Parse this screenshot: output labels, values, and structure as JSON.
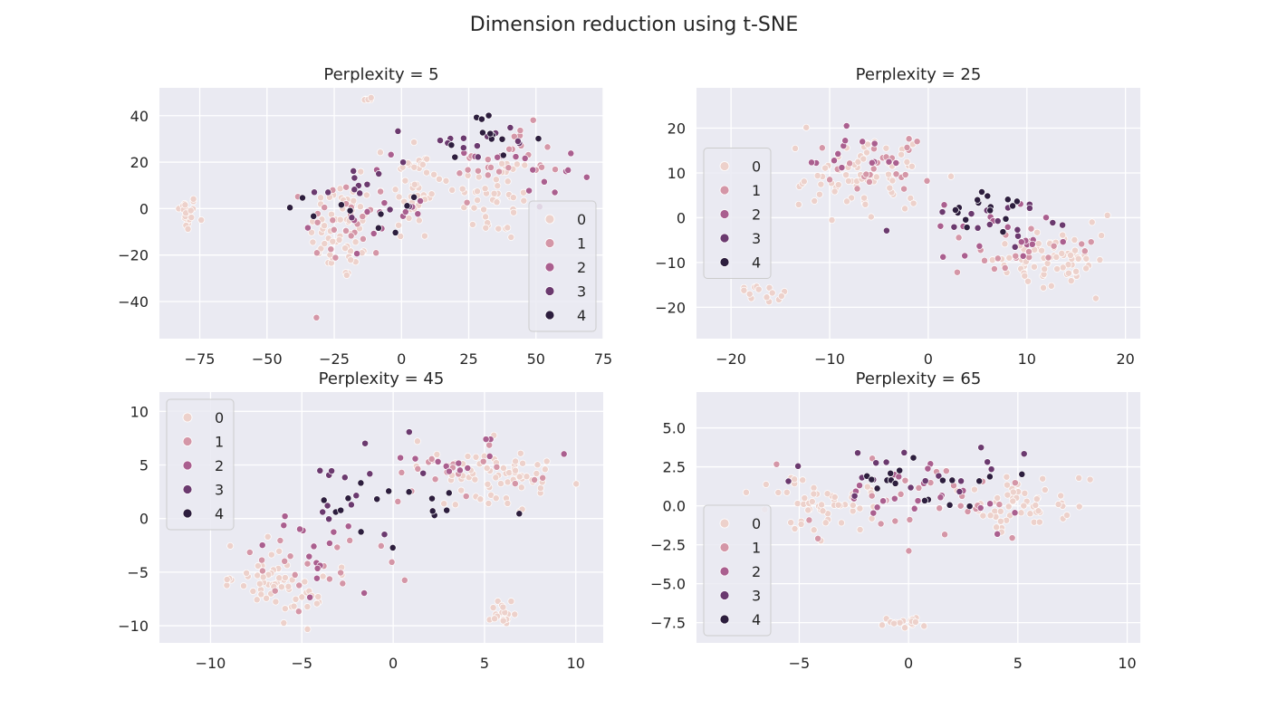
{
  "figure": {
    "suptitle": "Dimension reduction using t-SNE"
  },
  "hue_colors": {
    "0": "#edd1cb",
    "1": "#d496a7",
    "2": "#aa5f8f",
    "3": "#6b3a6f",
    "4": "#2d1e3e"
  },
  "legend_labels": [
    "0",
    "1",
    "2",
    "3",
    "4"
  ],
  "chart_data": [
    {
      "type": "scatter",
      "title": "Perplexity = 5",
      "xlabel": "",
      "ylabel": "",
      "xlim": [
        -90,
        75
      ],
      "ylim": [
        -56,
        52
      ],
      "xticks": [
        -75,
        -50,
        -25,
        0,
        25,
        50,
        75
      ],
      "yticks": [
        -40,
        -20,
        0,
        20,
        40
      ],
      "legend": "lower-right",
      "grid": true,
      "clusters": [
        {
          "hue": 0,
          "center": [
            -80,
            -2
          ],
          "spread": [
            4,
            8
          ],
          "n": 22
        },
        {
          "hue": 0,
          "center": [
            -22,
            -10
          ],
          "spread": [
            12,
            22
          ],
          "n": 60
        },
        {
          "hue": 0,
          "center": [
            5,
            10
          ],
          "spread": [
            10,
            25
          ],
          "n": 45
        },
        {
          "hue": 0,
          "center": [
            35,
            5
          ],
          "spread": [
            15,
            20
          ],
          "n": 45
        },
        {
          "hue": 0,
          "center": [
            -12,
            47
          ],
          "spread": [
            3,
            1
          ],
          "n": 5
        },
        {
          "hue": 1,
          "center": [
            -20,
            -5
          ],
          "spread": [
            15,
            20
          ],
          "n": 25
        },
        {
          "hue": 1,
          "center": [
            40,
            20
          ],
          "spread": [
            20,
            15
          ],
          "n": 25
        },
        {
          "hue": 2,
          "center": [
            -10,
            0
          ],
          "spread": [
            20,
            20
          ],
          "n": 15
        },
        {
          "hue": 2,
          "center": [
            45,
            15
          ],
          "spread": [
            20,
            15
          ],
          "n": 15
        },
        {
          "hue": 3,
          "center": [
            -15,
            10
          ],
          "spread": [
            20,
            20
          ],
          "n": 14
        },
        {
          "hue": 3,
          "center": [
            35,
            30
          ],
          "spread": [
            20,
            10
          ],
          "n": 12
        },
        {
          "hue": 4,
          "center": [
            -10,
            0
          ],
          "spread": [
            25,
            20
          ],
          "n": 10
        },
        {
          "hue": 4,
          "center": [
            30,
            30
          ],
          "spread": [
            20,
            10
          ],
          "n": 12
        }
      ]
    },
    {
      "type": "scatter",
      "title": "Perplexity = 25",
      "xlabel": "",
      "ylabel": "",
      "xlim": [
        -23.5,
        21.5
      ],
      "ylim": [
        -27,
        29
      ],
      "xticks": [
        -20,
        -10,
        0,
        10,
        20
      ],
      "yticks": [
        -20,
        -10,
        0,
        10,
        20
      ],
      "legend": "center-left",
      "grid": true,
      "clusters": [
        {
          "hue": 0,
          "center": [
            -7,
            10
          ],
          "spread": [
            7,
            9
          ],
          "n": 75
        },
        {
          "hue": 0,
          "center": [
            12,
            -10
          ],
          "spread": [
            6,
            7
          ],
          "n": 70
        },
        {
          "hue": 0,
          "center": [
            -17,
            -17
          ],
          "spread": [
            3,
            2
          ],
          "n": 14
        },
        {
          "hue": 1,
          "center": [
            -5,
            12
          ],
          "spread": [
            8,
            8
          ],
          "n": 25
        },
        {
          "hue": 1,
          "center": [
            10,
            -8
          ],
          "spread": [
            6,
            7
          ],
          "n": 20
        },
        {
          "hue": 2,
          "center": [
            -8,
            15
          ],
          "spread": [
            6,
            6
          ],
          "n": 14
        },
        {
          "hue": 2,
          "center": [
            9,
            -5
          ],
          "spread": [
            7,
            6
          ],
          "n": 18
        },
        {
          "hue": 3,
          "center": [
            7,
            0
          ],
          "spread": [
            7,
            8
          ],
          "n": 16
        },
        {
          "hue": 4,
          "center": [
            6,
            2
          ],
          "spread": [
            6,
            6
          ],
          "n": 16
        }
      ]
    },
    {
      "type": "scatter",
      "title": "Perplexity = 45",
      "xlabel": "",
      "ylabel": "",
      "xlim": [
        -12.8,
        11.5
      ],
      "ylim": [
        -11.6,
        11.8
      ],
      "xticks": [
        -10,
        -5,
        0,
        5,
        10
      ],
      "yticks": [
        -10,
        -5,
        0,
        5,
        10
      ],
      "legend": "upper-left",
      "grid": true,
      "clusters": [
        {
          "hue": 0,
          "center": [
            5,
            4
          ],
          "spread": [
            3.5,
            3
          ],
          "n": 70
        },
        {
          "hue": 0,
          "center": [
            -6,
            -6
          ],
          "spread": [
            3,
            3
          ],
          "n": 60
        },
        {
          "hue": 0,
          "center": [
            6,
            -9
          ],
          "spread": [
            0.8,
            1
          ],
          "n": 18
        },
        {
          "hue": 1,
          "center": [
            -4,
            -5
          ],
          "spread": [
            4,
            4
          ],
          "n": 20
        },
        {
          "hue": 1,
          "center": [
            4,
            4
          ],
          "spread": [
            4,
            3
          ],
          "n": 20
        },
        {
          "hue": 2,
          "center": [
            -5,
            -3
          ],
          "spread": [
            5,
            5
          ],
          "n": 16
        },
        {
          "hue": 2,
          "center": [
            3,
            5
          ],
          "spread": [
            4,
            3
          ],
          "n": 12
        },
        {
          "hue": 3,
          "center": [
            -2,
            3
          ],
          "spread": [
            5,
            5
          ],
          "n": 14
        },
        {
          "hue": 4,
          "center": [
            0,
            2
          ],
          "spread": [
            5,
            5
          ],
          "n": 16
        }
      ]
    },
    {
      "type": "scatter",
      "title": "Perplexity = 65",
      "xlabel": "",
      "ylabel": "",
      "xlim": [
        -9.7,
        10.6
      ],
      "ylim": [
        -8.8,
        7.3
      ],
      "xticks": [
        -5,
        0,
        5,
        10
      ],
      "yticks": [
        -7.5,
        -5.0,
        -2.5,
        0.0,
        2.5,
        5.0
      ],
      "legend": "lower-left",
      "grid": true,
      "clusters": [
        {
          "hue": 0,
          "center": [
            -4,
            0
          ],
          "spread": [
            2.5,
            2
          ],
          "n": 55
        },
        {
          "hue": 0,
          "center": [
            5,
            0
          ],
          "spread": [
            2.5,
            2.2
          ],
          "n": 55
        },
        {
          "hue": 0,
          "center": [
            0,
            -7.4
          ],
          "spread": [
            1,
            0.4
          ],
          "n": 16
        },
        {
          "hue": 1,
          "center": [
            0,
            0
          ],
          "spread": [
            5,
            2.5
          ],
          "n": 30
        },
        {
          "hue": 2,
          "center": [
            0,
            1
          ],
          "spread": [
            5,
            2.5
          ],
          "n": 22
        },
        {
          "hue": 3,
          "center": [
            1,
            2
          ],
          "spread": [
            5,
            2
          ],
          "n": 18
        },
        {
          "hue": 4,
          "center": [
            1,
            2
          ],
          "spread": [
            5,
            2
          ],
          "n": 18
        }
      ]
    }
  ]
}
